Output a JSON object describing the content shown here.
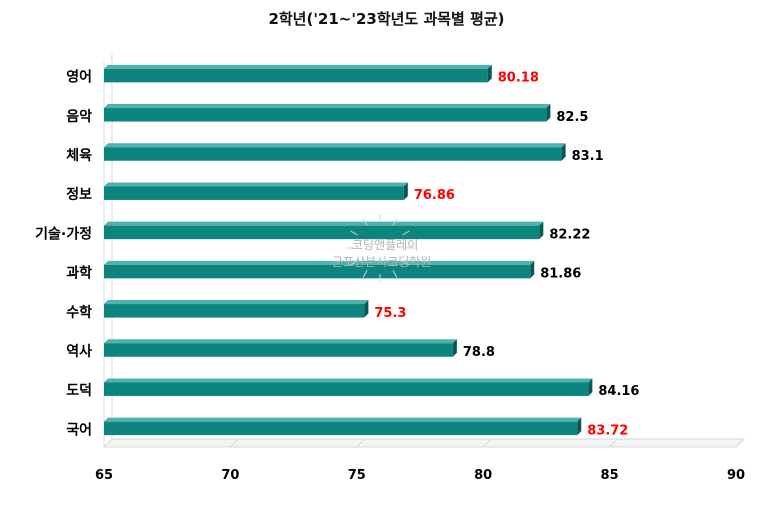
{
  "chart_data": {
    "type": "bar",
    "orientation": "horizontal",
    "title": "2학년('21~'23학년도 과목별 평균)",
    "categories": [
      "영어",
      "음악",
      "체육",
      "정보",
      "기술·가정",
      "과학",
      "수학",
      "역사",
      "도덕",
      "국어"
    ],
    "values": [
      80.18,
      82.5,
      83.1,
      76.86,
      82.22,
      81.86,
      75.3,
      78.8,
      84.16,
      83.72
    ],
    "value_labels": [
      "80.18",
      "82.5",
      "83.1",
      "76.86",
      "82.22",
      "81.86",
      "75.3",
      "78.8",
      "84.16",
      "83.72"
    ],
    "highlighted": [
      true,
      false,
      false,
      true,
      false,
      false,
      true,
      false,
      false,
      true
    ],
    "xlim": [
      65,
      90
    ],
    "xticks": [
      "65",
      "70",
      "75",
      "80",
      "85",
      "90"
    ],
    "xlabel": "",
    "ylabel": "",
    "grid": false,
    "legend": "none",
    "colors": {
      "bar_front": "#0e847e",
      "bar_top": "#4fb3ad",
      "bar_side": "#075954",
      "label_normal": "#000000",
      "label_highlight": "#ff0000",
      "axis": "#d9d9d9"
    }
  },
  "watermark": {
    "line1": "코딩앤플레이",
    "line2": "군포산본시코딩학원"
  }
}
